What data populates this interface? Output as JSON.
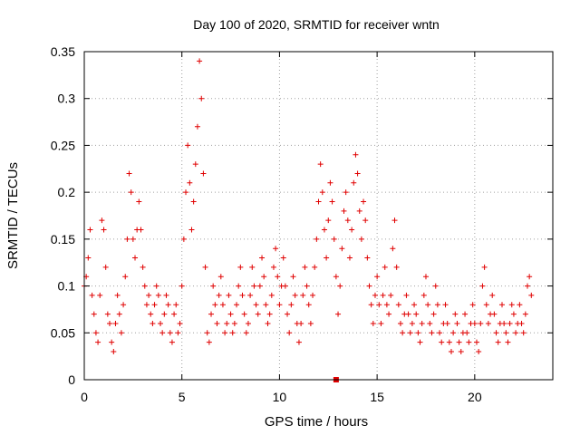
{
  "chart_data": {
    "type": "scatter",
    "title": "Day 100 of 2020, SRMTID for receiver wntn",
    "xlabel": "GPS time / hours",
    "ylabel": "SRMTID / TECUs",
    "xlim": [
      0,
      24
    ],
    "ylim": [
      0,
      0.35
    ],
    "xticks": [
      0,
      5,
      10,
      15,
      20
    ],
    "yticks": [
      0,
      0.05,
      0.1,
      0.15,
      0.2,
      0.25,
      0.3,
      0.35
    ],
    "xtick_labels": [
      "0",
      "5",
      "10",
      "15",
      "20"
    ],
    "ytick_labels": [
      "0",
      "0.05",
      "0.1",
      "0.15",
      "0.2",
      "0.25",
      "0.3",
      "0.35"
    ],
    "grid": true,
    "marker": "plus",
    "color": "#e00000",
    "series": [
      {
        "name": "SRMTID",
        "points": [
          [
            0.0,
            0.1
          ],
          [
            0.1,
            0.11
          ],
          [
            0.2,
            0.13
          ],
          [
            0.3,
            0.16
          ],
          [
            0.4,
            0.09
          ],
          [
            0.5,
            0.07
          ],
          [
            0.6,
            0.05
          ],
          [
            0.7,
            0.04
          ],
          [
            0.8,
            0.09
          ],
          [
            0.9,
            0.17
          ],
          [
            1.0,
            0.16
          ],
          [
            1.1,
            0.12
          ],
          [
            1.2,
            0.07
          ],
          [
            1.3,
            0.06
          ],
          [
            1.4,
            0.04
          ],
          [
            1.5,
            0.03
          ],
          [
            1.6,
            0.06
          ],
          [
            1.7,
            0.09
          ],
          [
            1.8,
            0.07
          ],
          [
            1.9,
            0.05
          ],
          [
            2.0,
            0.08
          ],
          [
            2.1,
            0.11
          ],
          [
            2.2,
            0.15
          ],
          [
            2.3,
            0.22
          ],
          [
            2.4,
            0.2
          ],
          [
            2.5,
            0.15
          ],
          [
            2.6,
            0.13
          ],
          [
            2.7,
            0.16
          ],
          [
            2.8,
            0.19
          ],
          [
            2.9,
            0.16
          ],
          [
            3.0,
            0.12
          ],
          [
            3.1,
            0.1
          ],
          [
            3.2,
            0.08
          ],
          [
            3.3,
            0.09
          ],
          [
            3.4,
            0.07
          ],
          [
            3.5,
            0.06
          ],
          [
            3.6,
            0.08
          ],
          [
            3.7,
            0.1
          ],
          [
            3.8,
            0.09
          ],
          [
            3.9,
            0.06
          ],
          [
            4.0,
            0.05
          ],
          [
            4.1,
            0.07
          ],
          [
            4.2,
            0.09
          ],
          [
            4.3,
            0.08
          ],
          [
            4.4,
            0.05
          ],
          [
            4.5,
            0.04
          ],
          [
            4.6,
            0.07
          ],
          [
            4.7,
            0.08
          ],
          [
            4.8,
            0.05
          ],
          [
            4.9,
            0.06
          ],
          [
            5.0,
            0.1
          ],
          [
            5.1,
            0.15
          ],
          [
            5.2,
            0.2
          ],
          [
            5.3,
            0.25
          ],
          [
            5.4,
            0.21
          ],
          [
            5.5,
            0.16
          ],
          [
            5.6,
            0.19
          ],
          [
            5.7,
            0.23
          ],
          [
            5.8,
            0.27
          ],
          [
            5.9,
            0.34
          ],
          [
            6.0,
            0.3
          ],
          [
            6.1,
            0.22
          ],
          [
            6.2,
            0.12
          ],
          [
            6.3,
            0.05
          ],
          [
            6.4,
            0.04
          ],
          [
            6.5,
            0.07
          ],
          [
            6.6,
            0.1
          ],
          [
            6.7,
            0.08
          ],
          [
            6.8,
            0.06
          ],
          [
            6.9,
            0.09
          ],
          [
            7.0,
            0.11
          ],
          [
            7.1,
            0.08
          ],
          [
            7.2,
            0.05
          ],
          [
            7.3,
            0.06
          ],
          [
            7.4,
            0.09
          ],
          [
            7.5,
            0.07
          ],
          [
            7.6,
            0.05
          ],
          [
            7.7,
            0.06
          ],
          [
            7.8,
            0.08
          ],
          [
            7.9,
            0.1
          ],
          [
            8.0,
            0.12
          ],
          [
            8.1,
            0.09
          ],
          [
            8.2,
            0.07
          ],
          [
            8.3,
            0.05
          ],
          [
            8.4,
            0.06
          ],
          [
            8.5,
            0.09
          ],
          [
            8.6,
            0.12
          ],
          [
            8.7,
            0.1
          ],
          [
            8.8,
            0.08
          ],
          [
            8.9,
            0.07
          ],
          [
            9.0,
            0.1
          ],
          [
            9.1,
            0.13
          ],
          [
            9.2,
            0.11
          ],
          [
            9.3,
            0.08
          ],
          [
            9.4,
            0.06
          ],
          [
            9.5,
            0.07
          ],
          [
            9.6,
            0.09
          ],
          [
            9.7,
            0.12
          ],
          [
            9.8,
            0.14
          ],
          [
            9.9,
            0.11
          ],
          [
            10.0,
            0.08
          ],
          [
            10.1,
            0.1
          ],
          [
            10.2,
            0.13
          ],
          [
            10.3,
            0.1
          ],
          [
            10.4,
            0.07
          ],
          [
            10.5,
            0.05
          ],
          [
            10.6,
            0.08
          ],
          [
            10.7,
            0.11
          ],
          [
            10.8,
            0.09
          ],
          [
            10.9,
            0.06
          ],
          [
            11.0,
            0.04
          ],
          [
            11.1,
            0.06
          ],
          [
            11.2,
            0.09
          ],
          [
            11.3,
            0.12
          ],
          [
            11.4,
            0.1
          ],
          [
            11.5,
            0.08
          ],
          [
            11.6,
            0.06
          ],
          [
            11.7,
            0.09
          ],
          [
            11.8,
            0.12
          ],
          [
            11.9,
            0.15
          ],
          [
            12.0,
            0.19
          ],
          [
            12.1,
            0.23
          ],
          [
            12.2,
            0.2
          ],
          [
            12.3,
            0.16
          ],
          [
            12.4,
            0.13
          ],
          [
            12.5,
            0.17
          ],
          [
            12.6,
            0.21
          ],
          [
            12.7,
            0.19
          ],
          [
            12.8,
            0.15
          ],
          [
            12.9,
            0.11
          ],
          [
            13.0,
            0.07
          ],
          [
            13.1,
            0.1
          ],
          [
            13.2,
            0.14
          ],
          [
            13.3,
            0.18
          ],
          [
            13.4,
            0.2
          ],
          [
            13.5,
            0.17
          ],
          [
            13.6,
            0.13
          ],
          [
            13.7,
            0.16
          ],
          [
            13.8,
            0.21
          ],
          [
            13.9,
            0.24
          ],
          [
            14.0,
            0.22
          ],
          [
            14.1,
            0.18
          ],
          [
            14.2,
            0.15
          ],
          [
            14.3,
            0.19
          ],
          [
            14.4,
            0.17
          ],
          [
            14.5,
            0.13
          ],
          [
            14.6,
            0.1
          ],
          [
            14.7,
            0.08
          ],
          [
            14.8,
            0.06
          ],
          [
            14.9,
            0.09
          ],
          [
            15.0,
            0.11
          ],
          [
            15.1,
            0.08
          ],
          [
            15.2,
            0.06
          ],
          [
            15.3,
            0.09
          ],
          [
            15.4,
            0.12
          ],
          [
            15.5,
            0.08
          ],
          [
            15.6,
            0.07
          ],
          [
            15.7,
            0.09
          ],
          [
            15.8,
            0.14
          ],
          [
            15.9,
            0.17
          ],
          [
            16.0,
            0.12
          ],
          [
            16.1,
            0.08
          ],
          [
            16.2,
            0.06
          ],
          [
            16.3,
            0.05
          ],
          [
            16.4,
            0.07
          ],
          [
            16.5,
            0.09
          ],
          [
            16.6,
            0.07
          ],
          [
            16.7,
            0.05
          ],
          [
            16.8,
            0.06
          ],
          [
            16.9,
            0.08
          ],
          [
            17.0,
            0.07
          ],
          [
            17.1,
            0.05
          ],
          [
            17.2,
            0.04
          ],
          [
            17.3,
            0.06
          ],
          [
            17.4,
            0.09
          ],
          [
            17.5,
            0.11
          ],
          [
            17.6,
            0.08
          ],
          [
            17.7,
            0.06
          ],
          [
            17.8,
            0.05
          ],
          [
            17.9,
            0.07
          ],
          [
            18.0,
            0.1
          ],
          [
            18.1,
            0.08
          ],
          [
            18.2,
            0.05
          ],
          [
            18.3,
            0.04
          ],
          [
            18.4,
            0.06
          ],
          [
            18.5,
            0.08
          ],
          [
            18.6,
            0.06
          ],
          [
            18.7,
            0.04
          ],
          [
            18.8,
            0.03
          ],
          [
            18.9,
            0.05
          ],
          [
            19.0,
            0.07
          ],
          [
            19.1,
            0.06
          ],
          [
            19.2,
            0.04
          ],
          [
            19.3,
            0.03
          ],
          [
            19.4,
            0.05
          ],
          [
            19.5,
            0.07
          ],
          [
            19.6,
            0.05
          ],
          [
            19.7,
            0.04
          ],
          [
            19.8,
            0.06
          ],
          [
            19.9,
            0.08
          ],
          [
            20.0,
            0.06
          ],
          [
            20.1,
            0.04
          ],
          [
            20.2,
            0.03
          ],
          [
            20.3,
            0.06
          ],
          [
            20.4,
            0.1
          ],
          [
            20.5,
            0.12
          ],
          [
            20.6,
            0.08
          ],
          [
            20.7,
            0.06
          ],
          [
            20.8,
            0.07
          ],
          [
            20.9,
            0.09
          ],
          [
            21.0,
            0.07
          ],
          [
            21.1,
            0.05
          ],
          [
            21.2,
            0.04
          ],
          [
            21.3,
            0.06
          ],
          [
            21.4,
            0.08
          ],
          [
            21.5,
            0.06
          ],
          [
            21.6,
            0.05
          ],
          [
            21.7,
            0.04
          ],
          [
            21.8,
            0.06
          ],
          [
            21.9,
            0.08
          ],
          [
            22.0,
            0.07
          ],
          [
            22.1,
            0.05
          ],
          [
            22.2,
            0.06
          ],
          [
            22.3,
            0.08
          ],
          [
            22.4,
            0.06
          ],
          [
            22.5,
            0.05
          ],
          [
            22.6,
            0.07
          ],
          [
            22.7,
            0.1
          ],
          [
            22.8,
            0.11
          ],
          [
            22.9,
            0.09
          ]
        ],
        "outliers": [
          [
            12.9,
            0.0
          ]
        ]
      }
    ]
  }
}
